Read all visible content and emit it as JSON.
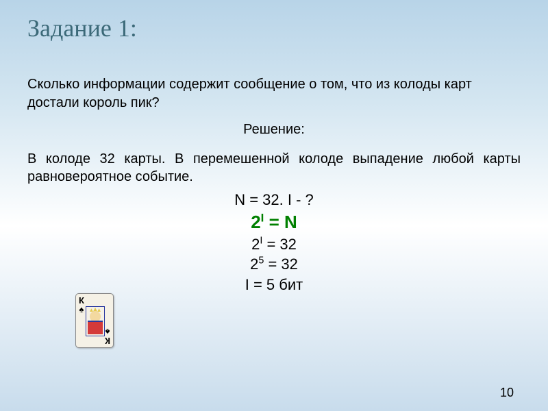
{
  "title": {
    "text": "Задание 1:",
    "color": "#3b6978",
    "fontsize": 36
  },
  "question": {
    "text": "Сколько информации содержит сообщение о том, что из колоды карт достали король пик?",
    "color": "#000000",
    "fontsize": 20
  },
  "solution_label": {
    "text": "Решение:",
    "color": "#000000",
    "fontsize": 20
  },
  "context": {
    "text": "В колоде 32 карты. В перемешенной колоде выпадение любой карты равновероятное событие.",
    "color": "#000000",
    "fontsize": 20
  },
  "equations": {
    "line1": {
      "text": "N = 32. I - ?",
      "color": "#000000",
      "fontsize": 22
    },
    "formula": {
      "base": "2",
      "exp": "I",
      "eq": " = N",
      "color": "#008000",
      "fontsize": 26
    },
    "line3": {
      "base": "2",
      "exp": "I",
      "eq": " = 32",
      "color": "#000000",
      "fontsize": 22
    },
    "line4": {
      "base": "2",
      "exp": "5",
      "eq": " = 32",
      "color": "#000000",
      "fontsize": 22
    },
    "answer": {
      "text": "I = 5 бит",
      "color": "#000000",
      "fontsize": 22
    }
  },
  "card": {
    "rank": "К",
    "suit": "♠"
  },
  "page_number": {
    "text": "10",
    "color": "#000000",
    "fontsize": 18
  }
}
